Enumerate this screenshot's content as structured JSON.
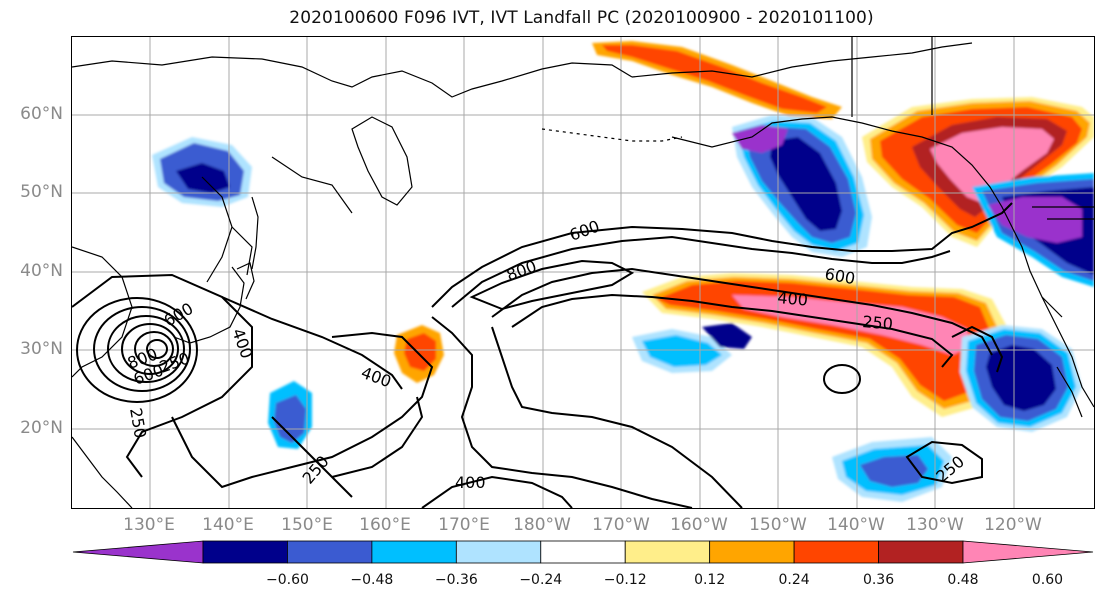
{
  "title": "2020100600 F096 IVT, IVT Landfall PC (2020100900 - 2020101100)",
  "map": {
    "lat_labels": [
      "60°N",
      "50°N",
      "40°N",
      "30°N",
      "20°N"
    ],
    "lon_labels": [
      "130°E",
      "140°E",
      "150°E",
      "160°E",
      "170°E",
      "180°W",
      "170°W",
      "160°W",
      "150°W",
      "140°W",
      "130°W",
      "120°W"
    ],
    "contour_labels": [
      "600",
      "800",
      "600",
      "400",
      "250",
      "600",
      "400",
      "250",
      "400",
      "250",
      "250",
      "400",
      "250",
      "800",
      "600"
    ]
  },
  "colorbar": {
    "colors": [
      "#9a33cc",
      "#00008b",
      "#3b5bd1",
      "#00bfff",
      "#afe3ff",
      "#ffffff",
      "#ffee8a",
      "#ffa500",
      "#ff4500",
      "#b22222",
      "#ff85b5"
    ],
    "tick_labels": [
      "−0.60",
      "−0.48",
      "−0.36",
      "−0.24",
      "−0.12",
      "0.12",
      "0.24",
      "0.36",
      "0.48",
      "0.60"
    ]
  }
}
